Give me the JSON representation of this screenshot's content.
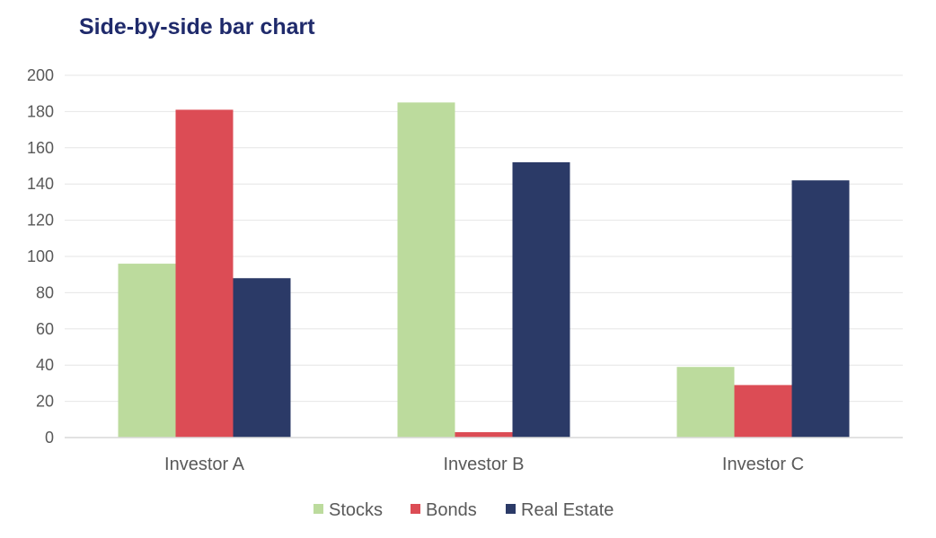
{
  "chart_data": {
    "type": "bar",
    "title": "Side-by-side bar chart",
    "xlabel": "",
    "ylabel": "",
    "categories": [
      "Investor A",
      "Investor B",
      "Investor C"
    ],
    "series": [
      {
        "name": "Stocks",
        "color": "#bcdb9d",
        "values": [
          96,
          185,
          39
        ]
      },
      {
        "name": "Bonds",
        "color": "#dc4c55",
        "values": [
          181,
          3,
          29
        ]
      },
      {
        "name": "Real Estate",
        "color": "#2b3a67",
        "values": [
          88,
          152,
          142
        ]
      }
    ],
    "ylim": [
      0,
      200
    ],
    "yticks": [
      0,
      20,
      40,
      60,
      80,
      100,
      120,
      140,
      160,
      180,
      200
    ],
    "grid": true,
    "legend_position": "bottom"
  }
}
